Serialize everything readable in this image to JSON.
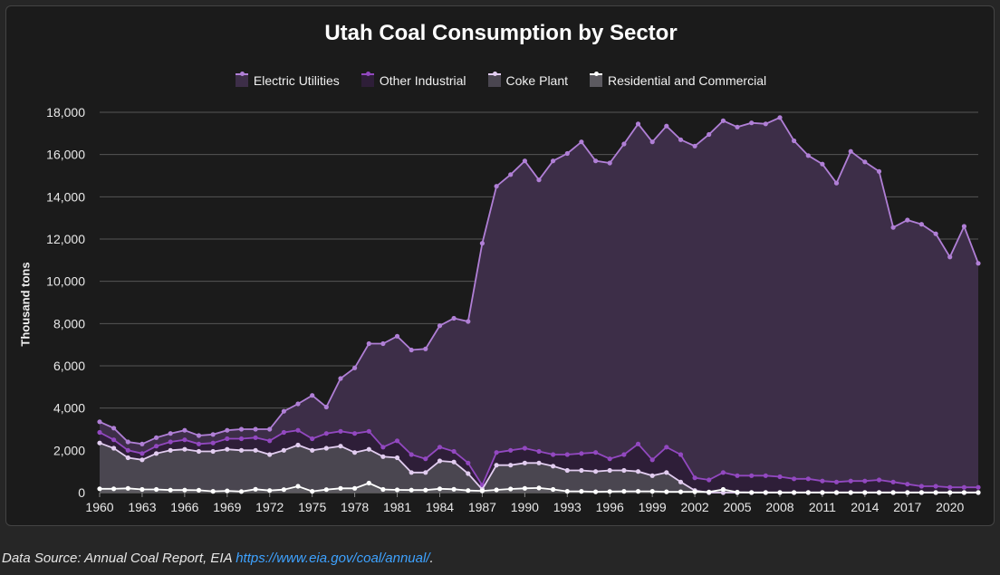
{
  "footer": {
    "source_prefix": "Data Source: Annual Coal Report, EIA",
    "source_link": "https://www.eia.gov/coal/annual/",
    "source_suffix": "."
  },
  "colors": {
    "background": "#262626",
    "panel": "#1b1b1b",
    "grid": "#555555",
    "axis_text": "#e8e8e8"
  },
  "chart_data": {
    "type": "area",
    "title": "Utah Coal Consumption by Sector",
    "xlabel": "",
    "ylabel": "Thousand tons",
    "ylim": [
      0,
      18000
    ],
    "yticks": [
      0,
      2000,
      4000,
      6000,
      8000,
      10000,
      12000,
      14000,
      16000,
      18000
    ],
    "ytick_labels": [
      "0",
      "2,000",
      "4,000",
      "6,000",
      "8,000",
      "10,000",
      "12,000",
      "14,000",
      "16,000",
      "18,000"
    ],
    "xticks": [
      1960,
      1963,
      1966,
      1969,
      1972,
      1975,
      1978,
      1981,
      1984,
      1987,
      1990,
      1993,
      1996,
      1999,
      2002,
      2005,
      2008,
      2011,
      2014,
      2017,
      2020
    ],
    "x": [
      1960,
      1961,
      1962,
      1963,
      1964,
      1965,
      1966,
      1967,
      1968,
      1969,
      1970,
      1971,
      1972,
      1973,
      1974,
      1975,
      1976,
      1977,
      1978,
      1979,
      1980,
      1981,
      1982,
      1983,
      1984,
      1985,
      1986,
      1987,
      1988,
      1989,
      1990,
      1991,
      1992,
      1993,
      1994,
      1995,
      1996,
      1997,
      1998,
      1999,
      2000,
      2001,
      2002,
      2003,
      2004,
      2005,
      2006,
      2007,
      2008,
      2009,
      2010,
      2011,
      2012,
      2013,
      2014,
      2015,
      2016,
      2017,
      2018,
      2019,
      2020,
      2021,
      2022
    ],
    "legend_position": "top-center",
    "stacked": true,
    "series": [
      {
        "name": "Electric Utilities",
        "color": "#b07fd6",
        "fill": "#3d2e48",
        "cumulative_values": [
          3350,
          3050,
          2400,
          2300,
          2600,
          2800,
          2950,
          2700,
          2750,
          2950,
          3000,
          3000,
          3000,
          3850,
          4200,
          4600,
          4050,
          5400,
          5900,
          7050,
          7050,
          7400,
          6750,
          6800,
          7900,
          8250,
          8100,
          11800,
          14500,
          15050,
          15700,
          14800,
          15700,
          16050,
          16600,
          15700,
          15600,
          16500,
          17450,
          16600,
          17350,
          16700,
          16400,
          16950,
          17600,
          17300,
          17500,
          17450,
          17750,
          16650,
          15950,
          15550,
          14650,
          16150,
          15650,
          15200,
          12550,
          12900,
          12700,
          12250,
          11150,
          12600,
          10850
        ]
      },
      {
        "name": "Other Industrial",
        "color": "#9248c0",
        "fill": "#2e1e38",
        "cumulative_values": [
          2850,
          2500,
          2000,
          1850,
          2200,
          2400,
          2500,
          2300,
          2350,
          2550,
          2550,
          2600,
          2450,
          2850,
          2950,
          2550,
          2800,
          2900,
          2800,
          2900,
          2150,
          2450,
          1800,
          1600,
          2150,
          1950,
          1400,
          350,
          1900,
          2000,
          2100,
          1950,
          1800,
          1800,
          1850,
          1900,
          1600,
          1800,
          2300,
          1550,
          2150,
          1800,
          700,
          600,
          950,
          800,
          800,
          800,
          750,
          650,
          650,
          550,
          500,
          550,
          550,
          600,
          500,
          400,
          300,
          300,
          250,
          250,
          250
        ]
      },
      {
        "name": "Coke Plant",
        "color": "#e2cdf0",
        "fill": "#4a4650",
        "cumulative_values": [
          2350,
          2100,
          1650,
          1550,
          1850,
          2000,
          2050,
          1950,
          1950,
          2050,
          2000,
          2000,
          1800,
          2000,
          2250,
          2000,
          2100,
          2200,
          1900,
          2050,
          1700,
          1650,
          950,
          950,
          1500,
          1450,
          900,
          150,
          1300,
          1300,
          1400,
          1400,
          1250,
          1050,
          1050,
          1000,
          1050,
          1050,
          1000,
          800,
          950,
          500,
          100,
          0,
          0,
          0,
          0,
          0,
          0,
          0,
          0,
          0,
          0,
          0,
          0,
          0,
          0,
          0,
          0,
          0,
          0,
          0,
          0
        ]
      },
      {
        "name": "Residential and Commercial",
        "color": "#ffffff",
        "fill": "#5c5a60",
        "cumulative_values": [
          180,
          180,
          200,
          150,
          150,
          120,
          120,
          110,
          60,
          80,
          50,
          160,
          100,
          140,
          300,
          60,
          140,
          200,
          200,
          450,
          150,
          130,
          120,
          120,
          180,
          160,
          100,
          80,
          130,
          170,
          200,
          220,
          150,
          60,
          60,
          40,
          50,
          60,
          60,
          60,
          40,
          40,
          40,
          30,
          150,
          20,
          10,
          10,
          10,
          10,
          10,
          10,
          10,
          10,
          10,
          10,
          10,
          10,
          10,
          10,
          10,
          10,
          10
        ]
      }
    ]
  }
}
